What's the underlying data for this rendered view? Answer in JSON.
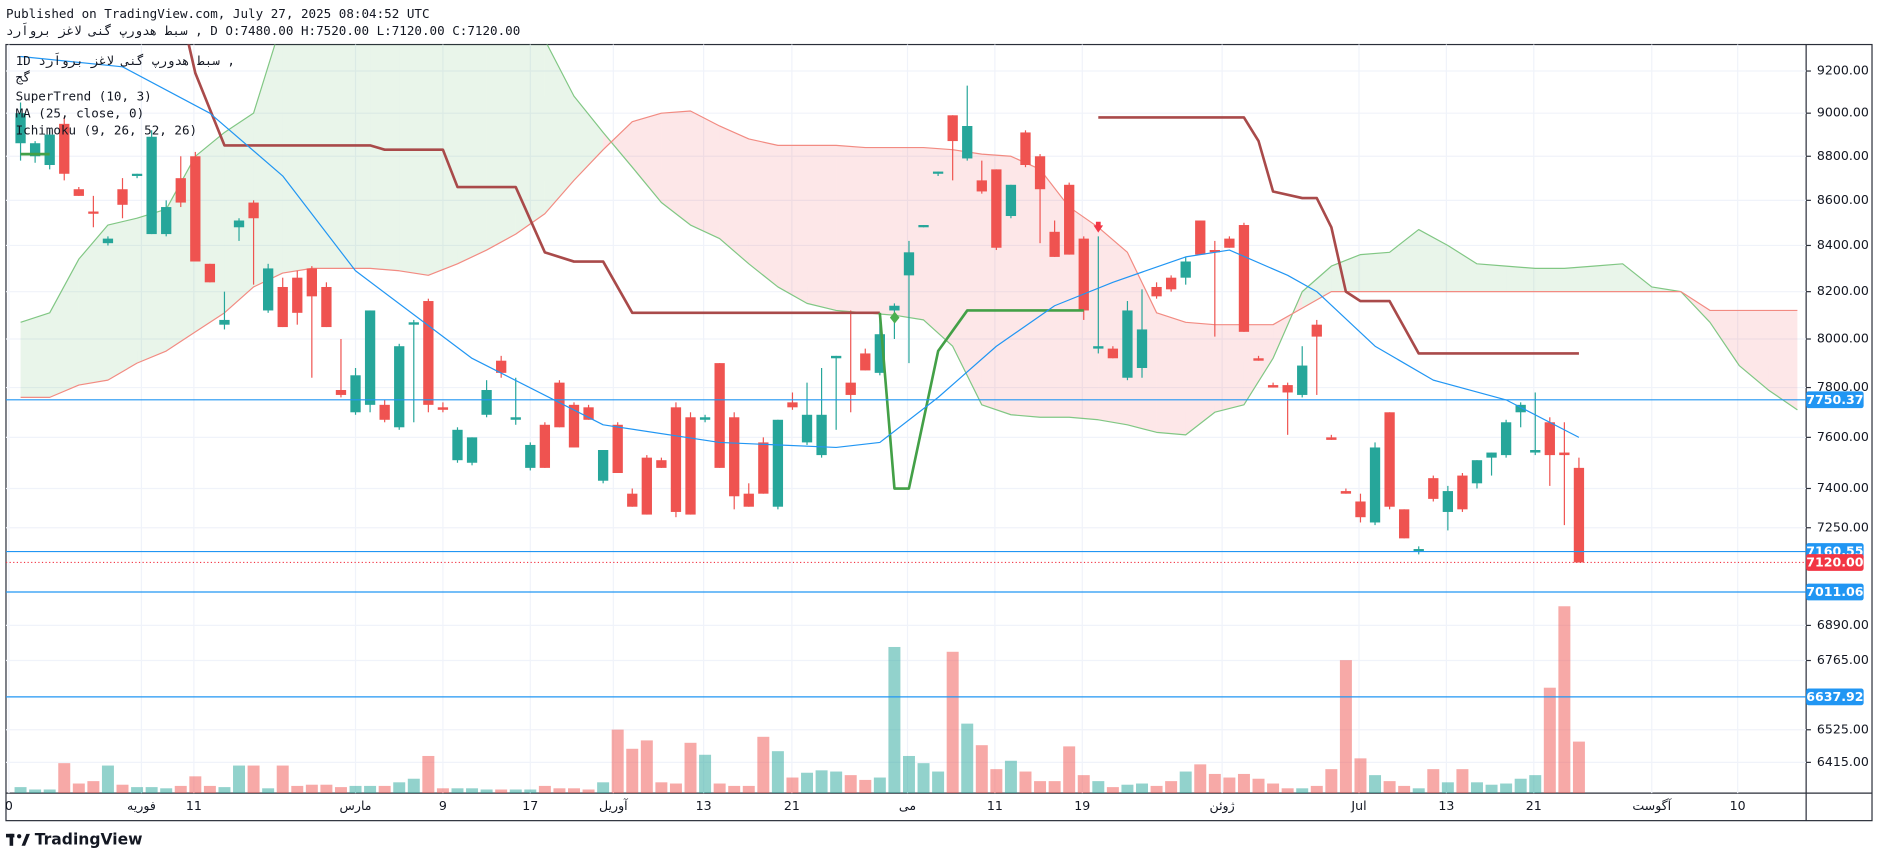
{
  "header": {
    "published": "Published on TradingView.com, July 27, 2025 08:04:52 UTC",
    "symbol_line": "سبط هدورپ گنی لاغز برواَرد , D O:7480.00 H:7520.00 L:7120.00 C:7120.00"
  },
  "chart_data": {
    "type": "candlestick",
    "interval": "1D",
    "symbol": "سبط هدورپ گنی لاغز برواَرد ,",
    "exchange": "گج",
    "log_scale": true,
    "grid": true,
    "up_color": "#26a69a",
    "down_color": "#ef5350",
    "xlim": [
      -1,
      122.6
    ],
    "ylim": [
      6313,
      9328
    ],
    "xticks": [
      {
        "value": -0.8,
        "label": "0"
      },
      {
        "value": 8.3,
        "label": "فوریه"
      },
      {
        "value": 11.9,
        "label": "11"
      },
      {
        "value": 23.0,
        "label": "مارس"
      },
      {
        "value": 29.0,
        "label": "9"
      },
      {
        "value": 35.0,
        "label": "17"
      },
      {
        "value": 40.7,
        "label": "آوریل"
      },
      {
        "value": 46.9,
        "label": "13"
      },
      {
        "value": 52.96,
        "label": "21"
      },
      {
        "value": 60.9,
        "label": "می"
      },
      {
        "value": 66.9,
        "label": "11"
      },
      {
        "value": 72.9,
        "label": "19"
      },
      {
        "value": 82.5,
        "label": "ژوئن"
      },
      {
        "value": 91.9,
        "label": "Jul"
      },
      {
        "value": 97.9,
        "label": "13"
      },
      {
        "value": 103.9,
        "label": "21"
      },
      {
        "value": 112.0,
        "label": "آگوست"
      },
      {
        "value": 117.9,
        "label": "10"
      }
    ],
    "yticks": [
      {
        "value": 9200,
        "label": "9200.00"
      },
      {
        "value": 9000,
        "label": "9000.00"
      },
      {
        "value": 8800,
        "label": "8800.00"
      },
      {
        "value": 8600,
        "label": "8600.00"
      },
      {
        "value": 8400,
        "label": "8400.00"
      },
      {
        "value": 8200,
        "label": "8200.00"
      },
      {
        "value": 8000,
        "label": "8000.00"
      },
      {
        "value": 7800,
        "label": "7800.00"
      },
      {
        "value": 7600,
        "label": "7600.00"
      },
      {
        "value": 7400,
        "label": "7400.00"
      },
      {
        "value": 7250,
        "label": "7250.00"
      },
      {
        "value": 6890,
        "label": "6890.00"
      },
      {
        "value": 6765,
        "label": "6765.00"
      },
      {
        "value": 6525,
        "label": "6525.00"
      },
      {
        "value": 6415,
        "label": "6415.00"
      }
    ],
    "ohlc": [
      [
        8860,
        9050,
        8780,
        9000
      ],
      [
        8800,
        8870,
        8770,
        8860
      ],
      [
        8760,
        8920,
        8740,
        8900
      ],
      [
        8950,
        8980,
        8690,
        8720
      ],
      [
        8650,
        8660,
        8620,
        8620
      ],
      [
        8550,
        8620,
        8480,
        8540
      ],
      [
        8410,
        8440,
        8400,
        8430
      ],
      [
        8650,
        8700,
        8520,
        8580
      ],
      [
        8710,
        8720,
        8700,
        8720
      ],
      [
        8450,
        8920,
        8450,
        8890
      ],
      [
        8450,
        8600,
        8440,
        8570
      ],
      [
        8700,
        8800,
        8570,
        8590
      ],
      [
        8800,
        8820,
        8330,
        8330
      ],
      [
        8320,
        8320,
        8240,
        8240
      ],
      [
        8060,
        8200,
        8040,
        8080
      ],
      [
        8480,
        8520,
        8420,
        8510
      ],
      [
        8590,
        8600,
        8230,
        8520
      ],
      [
        8120,
        8320,
        8110,
        8300
      ],
      [
        8220,
        8260,
        8050,
        8050
      ],
      [
        8260,
        8290,
        8060,
        8110
      ],
      [
        8300,
        8310,
        7840,
        8180
      ],
      [
        8220,
        8240,
        8050,
        8050
      ],
      [
        7790,
        8000,
        7760,
        7770
      ],
      [
        7700,
        7880,
        7690,
        7850
      ],
      [
        7730,
        8120,
        7700,
        8120
      ],
      [
        7730,
        7750,
        7660,
        7670
      ],
      [
        7640,
        7980,
        7630,
        7970
      ],
      [
        8060,
        8080,
        7660,
        8070
      ],
      [
        8160,
        8170,
        7700,
        7730
      ],
      [
        7720,
        7740,
        7700,
        7710
      ],
      [
        7510,
        7640,
        7500,
        7630
      ],
      [
        7500,
        7600,
        7490,
        7600
      ],
      [
        7690,
        7830,
        7680,
        7790
      ],
      [
        7910,
        7930,
        7840,
        7860
      ],
      [
        7670,
        7840,
        7650,
        7680
      ],
      [
        7480,
        7580,
        7470,
        7570
      ],
      [
        7650,
        7660,
        7480,
        7480
      ],
      [
        7820,
        7830,
        7640,
        7640
      ],
      [
        7730,
        7740,
        7560,
        7560
      ],
      [
        7720,
        7730,
        7670,
        7670
      ],
      [
        7430,
        7550,
        7420,
        7550
      ],
      [
        7650,
        7660,
        7460,
        7460
      ],
      [
        7380,
        7400,
        7330,
        7330
      ],
      [
        7520,
        7530,
        7300,
        7300
      ],
      [
        7510,
        7520,
        7480,
        7480
      ],
      [
        7720,
        7740,
        7290,
        7310
      ],
      [
        7680,
        7700,
        7300,
        7300
      ],
      [
        7670,
        7690,
        7660,
        7680
      ],
      [
        7900,
        7900,
        7480,
        7480
      ],
      [
        7680,
        7700,
        7320,
        7370
      ],
      [
        7380,
        7420,
        7330,
        7330
      ],
      [
        7580,
        7600,
        7380,
        7380
      ],
      [
        7330,
        7670,
        7320,
        7670
      ],
      [
        7740,
        7780,
        7710,
        7720
      ],
      [
        7580,
        7820,
        7570,
        7690
      ],
      [
        7530,
        7880,
        7520,
        7690
      ],
      [
        7920,
        7930,
        7630,
        7930
      ],
      [
        7820,
        8120,
        7700,
        7770
      ],
      [
        7940,
        7960,
        7870,
        7870
      ],
      [
        7860,
        8100,
        7850,
        8020
      ],
      [
        8120,
        8150,
        8000,
        8140
      ],
      [
        8270,
        8420,
        7900,
        8370
      ],
      [
        8480,
        8490,
        8480,
        8490
      ],
      [
        8720,
        8730,
        8710,
        8730
      ],
      [
        8990,
        8990,
        8690,
        8870
      ],
      [
        8790,
        9130,
        8780,
        8940
      ],
      [
        8690,
        8780,
        8630,
        8640
      ],
      [
        8740,
        8740,
        8380,
        8390
      ],
      [
        8530,
        8670,
        8520,
        8670
      ],
      [
        8910,
        8920,
        8750,
        8760
      ],
      [
        8800,
        8810,
        8410,
        8650
      ],
      [
        8460,
        8510,
        8350,
        8350
      ],
      [
        8670,
        8680,
        8360,
        8360
      ],
      [
        8430,
        8440,
        8080,
        8120
      ],
      [
        7960,
        8440,
        7940,
        7970
      ],
      [
        7960,
        7970,
        7920,
        7920
      ],
      [
        7840,
        8160,
        7830,
        8120
      ],
      [
        7880,
        8210,
        7840,
        8040
      ],
      [
        8220,
        8240,
        8170,
        8180
      ],
      [
        8260,
        8270,
        8200,
        8210
      ],
      [
        8260,
        8350,
        8230,
        8330
      ],
      [
        8510,
        8510,
        8360,
        8360
      ],
      [
        8380,
        8420,
        8010,
        8370
      ],
      [
        8430,
        8440,
        8390,
        8390
      ],
      [
        8490,
        8500,
        8030,
        8030
      ],
      [
        7920,
        7930,
        7910,
        7910
      ],
      [
        7810,
        7820,
        7800,
        7800
      ],
      [
        7810,
        7820,
        7610,
        7780
      ],
      [
        7770,
        7970,
        7760,
        7890
      ],
      [
        8060,
        8080,
        7770,
        8010
      ],
      [
        7600,
        7610,
        7590,
        7590
      ],
      [
        7390,
        7400,
        7380,
        7380
      ],
      [
        7350,
        7380,
        7270,
        7290
      ],
      [
        7270,
        7580,
        7260,
        7560
      ],
      [
        7700,
        7700,
        7320,
        7330
      ],
      [
        7320,
        7320,
        7210,
        7210
      ],
      [
        7160,
        7180,
        7150,
        7170
      ],
      [
        7440,
        7450,
        7350,
        7360
      ],
      [
        7310,
        7410,
        7240,
        7390
      ],
      [
        7450,
        7460,
        7310,
        7320
      ],
      [
        7420,
        7510,
        7400,
        7510
      ],
      [
        7520,
        7540,
        7450,
        7540
      ],
      [
        7530,
        7670,
        7520,
        7660
      ],
      [
        7700,
        7740,
        7640,
        7730
      ],
      [
        7540,
        7780,
        7530,
        7550
      ],
      [
        7660,
        7680,
        7410,
        7530
      ],
      [
        7540,
        7660,
        7260,
        7530
      ],
      [
        7480,
        7520,
        7120,
        7120
      ]
    ],
    "volume": [
      5,
      3,
      3,
      25,
      8,
      10,
      23,
      7,
      5,
      5,
      4,
      6,
      14,
      6,
      5,
      23,
      23,
      4,
      23,
      6,
      7,
      7,
      5,
      6,
      6,
      6,
      9,
      12,
      31,
      4,
      4,
      4,
      3,
      3,
      3,
      3,
      6,
      4,
      4,
      3,
      9,
      53,
      37,
      44,
      9,
      8,
      42,
      32,
      8,
      6,
      6,
      47,
      35,
      13,
      17,
      19,
      18,
      15,
      11,
      13,
      122,
      31,
      25,
      18,
      118,
      58,
      40,
      20,
      27,
      18,
      10,
      10,
      39,
      15,
      10,
      5,
      7,
      8,
      6,
      10,
      18,
      24,
      16,
      13,
      16,
      12,
      8,
      4,
      4,
      6,
      20,
      111,
      29,
      15,
      10,
      6,
      4,
      20,
      9,
      20,
      9,
      7,
      8,
      12,
      15,
      88,
      156,
      43
    ],
    "indicators": [
      {
        "name": "SuperTrend (10, 3)",
        "pieces": [
          {
            "color": "#43a047",
            "x": [
              0,
              2
            ],
            "values": [
              8810,
              8810
            ]
          },
          {
            "color": "#a94a4a",
            "x": [
              3,
              11,
              12,
              14,
              24,
              25,
              29,
              30,
              34,
              36,
              38,
              40,
              42,
              59
            ],
            "values": [
              9500,
              9500,
              9190,
              8850,
              8850,
              8830,
              8830,
              8660,
              8660,
              8370,
              8330,
              8330,
              8110,
              8110
            ]
          },
          {
            "color": "#43a047",
            "x": [
              59,
              60,
              61,
              63,
              65,
              73
            ],
            "values": [
              8110,
              7400,
              7400,
              7950,
              8120,
              8120
            ]
          },
          {
            "color": "#a94a4a",
            "x": [
              74,
              84,
              85,
              86,
              88,
              89,
              90,
              91,
              92,
              94,
              96,
              107
            ],
            "values": [
              8980,
              8980,
              8870,
              8640,
              8610,
              8610,
              8480,
              8200,
              8160,
              8160,
              7940,
              7940
            ]
          }
        ]
      },
      {
        "name": "MA (25, close, 0)",
        "color": "#2196f3",
        "x": [
          0,
          7,
          13,
          18,
          23,
          31,
          40,
          48,
          56,
          59,
          63,
          67,
          71,
          75,
          80,
          83,
          87,
          89,
          93,
          97,
          102,
          107
        ],
        "values": [
          9270,
          9220,
          9000,
          8710,
          8290,
          7920,
          7650,
          7580,
          7560,
          7580,
          7760,
          7970,
          8140,
          8240,
          8350,
          8380,
          8270,
          8200,
          7970,
          7830,
          7750,
          7600
        ]
      },
      {
        "name": "Ichimoku (9, 26, 52, 26)",
        "color_a": "#81c784",
        "color_b": "#f28b82",
        "fill_up": "rgba(76,175,80,0.12)",
        "fill_down": "rgba(242,54,69,0.12)",
        "x": [
          0,
          2,
          4,
          6,
          8,
          10,
          12,
          14,
          16,
          18,
          20,
          22,
          24,
          26,
          28,
          30,
          32,
          34,
          36,
          38,
          40,
          42,
          44,
          46,
          48,
          50,
          52,
          54,
          56,
          58,
          60,
          62,
          64,
          66,
          68,
          70,
          72,
          74,
          76,
          78,
          80,
          82,
          84,
          86,
          88,
          90,
          92,
          94,
          96,
          98,
          100,
          102,
          104,
          106,
          108,
          110,
          112,
          114,
          116,
          118,
          120,
          122
        ],
        "span_a": [
          8070,
          8110,
          8340,
          8490,
          8520,
          8560,
          8800,
          8910,
          9000,
          9450,
          9500,
          9500,
          9500,
          9500,
          9500,
          9500,
          9500,
          9450,
          9350,
          9080,
          8910,
          8750,
          8590,
          8490,
          8430,
          8320,
          8220,
          8150,
          8120,
          8110,
          8100,
          8080,
          7970,
          7730,
          7690,
          7680,
          7680,
          7670,
          7650,
          7620,
          7610,
          7700,
          7730,
          7920,
          8200,
          8310,
          8360,
          8370,
          8470,
          8400,
          8320,
          8310,
          8300,
          8300,
          8310,
          8320,
          8220,
          8200,
          8070,
          7890,
          7790,
          7710
        ],
        "span_b": [
          7760,
          7760,
          7810,
          7830,
          7900,
          7950,
          8030,
          8110,
          8220,
          8280,
          8300,
          8300,
          8300,
          8290,
          8270,
          8320,
          8380,
          8450,
          8540,
          8690,
          8830,
          8960,
          9000,
          9010,
          8940,
          8880,
          8850,
          8850,
          8850,
          8840,
          8840,
          8840,
          8830,
          8810,
          8800,
          8740,
          8570,
          8480,
          8370,
          8110,
          8070,
          8060,
          8060,
          8060,
          8130,
          8200,
          8200,
          8200,
          8200,
          8200,
          8200,
          8200,
          8200,
          8200,
          8200,
          8200,
          8200,
          8200,
          8120,
          8120,
          8120,
          8120
        ]
      }
    ],
    "price_lines": [
      {
        "value": 7750.37,
        "color": "#2196f3"
      },
      {
        "value": 7160.55,
        "color": "#2196f3"
      },
      {
        "value": 7011.06,
        "color": "#2196f3"
      },
      {
        "value": 6637.92,
        "color": "#2196f3"
      }
    ],
    "last_price": {
      "value": 7120,
      "label": "7120.00",
      "color": "#f23645"
    }
  },
  "footer": {
    "brand": "TradingView"
  }
}
